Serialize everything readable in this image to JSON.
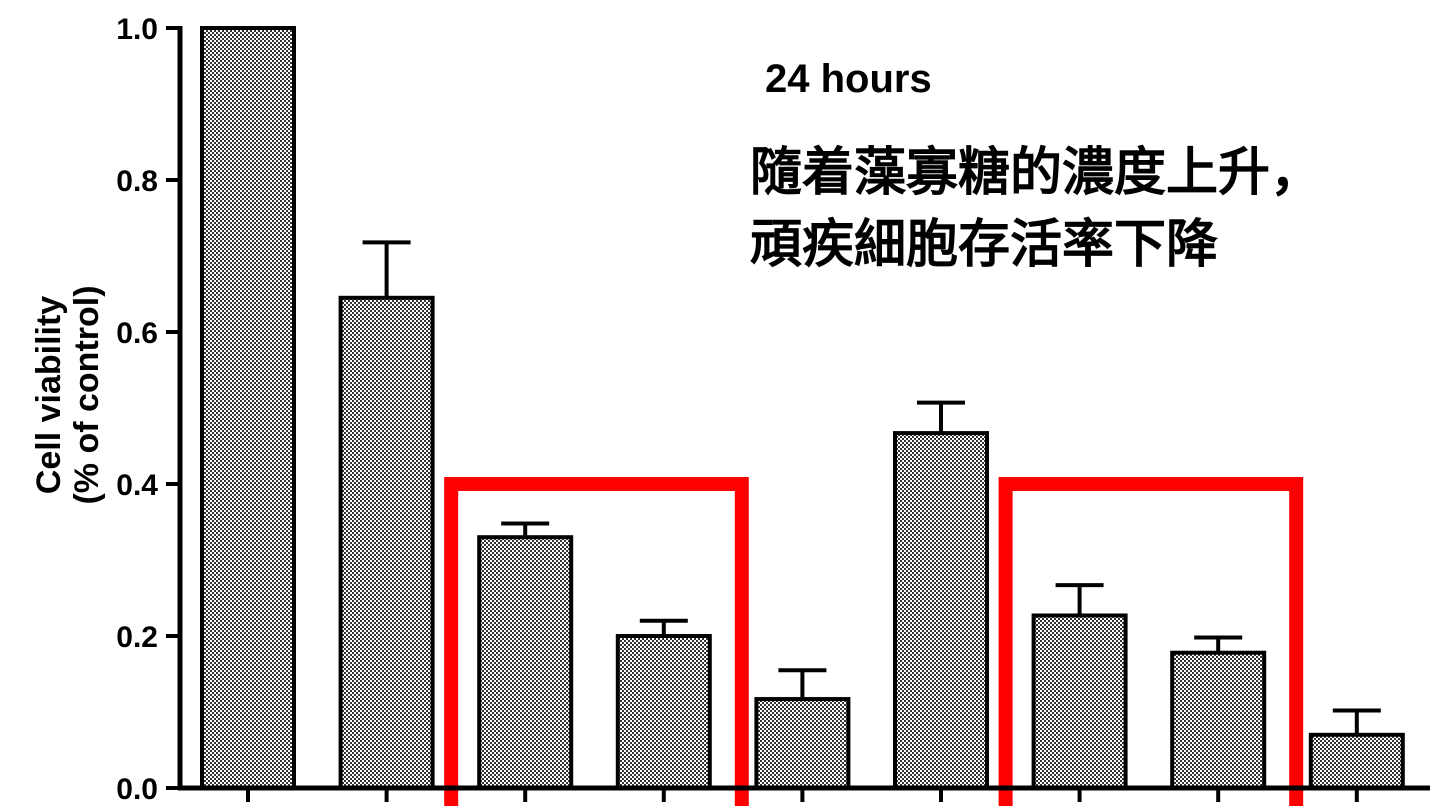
{
  "chart_data": {
    "type": "bar",
    "title": "24 hours",
    "annotation_lines": [
      "隨着藻寡糖的濃度上升，",
      "頑疾細胞存活率下降"
    ],
    "ylabel_line1": "Cell viability",
    "ylabel_line2": "(% of control)",
    "xlabel": "",
    "ylim": [
      0,
      1.0
    ],
    "yticks": [
      "0.0",
      "0.2",
      "0.4",
      "0.6",
      "0.8",
      "1.0"
    ],
    "grid": false,
    "values": [
      1.0,
      0.645,
      0.33,
      0.2,
      0.117,
      0.467,
      0.227,
      0.178,
      0.07
    ],
    "errors": [
      0.0,
      0.073,
      0.018,
      0.02,
      0.038,
      0.04,
      0.04,
      0.02,
      0.032
    ],
    "highlight_groups": [
      [
        2,
        3
      ],
      [
        6,
        7
      ]
    ],
    "highlight_top_value": 0.4
  },
  "colors": {
    "bar_fill": "#8c8c8c",
    "bar_stroke": "#000000",
    "highlight": "#ff0000",
    "axis": "#000000"
  }
}
